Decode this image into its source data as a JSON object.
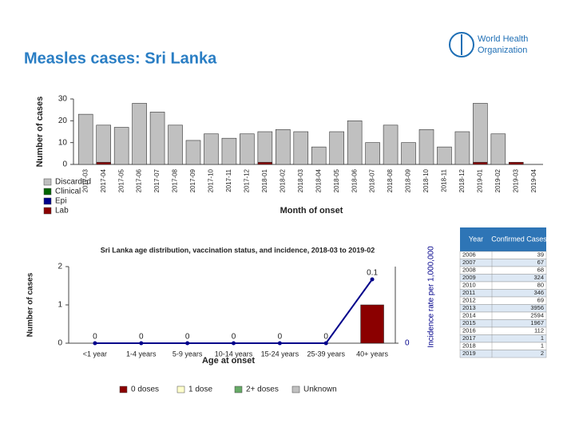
{
  "header": {
    "title": "Measles cases: Sri Lanka",
    "logo": [
      "World Health",
      "Organization"
    ]
  },
  "chart_data": [
    {
      "type": "bar",
      "stacked": true,
      "legend": "bottom-left",
      "y_label": "Number of cases",
      "x_label": "Month of onset",
      "categories": [
        "2017-03",
        "2017-04",
        "2017-05",
        "2017-06",
        "2017-07",
        "2017-08",
        "2017-09",
        "2017-10",
        "2017-11",
        "2017-12",
        "2018-01",
        "2018-02",
        "2018-03",
        "2018-04",
        "2018-05",
        "2018-06",
        "2018-07",
        "2018-08",
        "2018-09",
        "2018-10",
        "2018-11",
        "2018-12",
        "2019-01",
        "2019-02",
        "2019-03",
        "2019-04"
      ],
      "ylim": [
        0,
        30
      ],
      "yticks": [
        0,
        10,
        20,
        30
      ],
      "series": [
        {
          "name": "Lab",
          "color": "#8b0000",
          "values": [
            0,
            1,
            0,
            0,
            0,
            0,
            0,
            0,
            0,
            0,
            1,
            0,
            0,
            0,
            0,
            0,
            0,
            0,
            0,
            0,
            0,
            0,
            1,
            0,
            1,
            0
          ]
        },
        {
          "name": "Epi",
          "color": "#00008b",
          "values": [
            0,
            0,
            0,
            0,
            0,
            0,
            0,
            0,
            0,
            0,
            0,
            0,
            0,
            0,
            0,
            0,
            0,
            0,
            0,
            0,
            0,
            0,
            0,
            0,
            0,
            0
          ]
        },
        {
          "name": "Clinical",
          "color": "#006400",
          "values": [
            0,
            0,
            0,
            0,
            0,
            0,
            0,
            0,
            0,
            0,
            0,
            0,
            0,
            0,
            0,
            0,
            0,
            0,
            0,
            0,
            0,
            0,
            0,
            0,
            0,
            0
          ]
        },
        {
          "name": "Discarded",
          "color": "#c0c0c0",
          "values": [
            23,
            17,
            17,
            28,
            24,
            18,
            11,
            14,
            12,
            14,
            14,
            16,
            15,
            8,
            15,
            20,
            10,
            18,
            10,
            16,
            8,
            15,
            27,
            14,
            0,
            0
          ]
        }
      ]
    },
    {
      "type": "bar",
      "stacked": true,
      "legend": "bottom",
      "title": "Sri Lanka age distribution, vaccination status, and incidence, 2018-03 to 2019-02",
      "y_label": "Number of cases",
      "x_label": "Age at onset",
      "y2_label": "Incidence rate per 1,000,000",
      "categories": [
        "<1 year",
        "1-4 years",
        "5-9 years",
        "10-14 years",
        "15-24 years",
        "25-39 years",
        "40+ years"
      ],
      "ylim": [
        0,
        2
      ],
      "yticks": [
        0,
        1,
        2
      ],
      "y2lim": [
        0,
        0.12
      ],
      "y2ticks": [
        0
      ],
      "series": [
        {
          "name": "0 doses",
          "color": "#8b0000",
          "values": [
            0,
            0,
            0,
            0,
            0,
            0,
            1
          ]
        },
        {
          "name": "1 dose",
          "color": "#ffffcc",
          "values": [
            0,
            0,
            0,
            0,
            0,
            0,
            0
          ]
        },
        {
          "name": "2+ doses",
          "color": "#66aa66",
          "values": [
            0,
            0,
            0,
            0,
            0,
            0,
            0
          ]
        },
        {
          "name": "Unknown",
          "color": "#c0c0c0",
          "values": [
            0,
            0,
            0,
            0,
            0,
            0,
            0
          ]
        }
      ],
      "line": {
        "axis": "y2",
        "color": "#00008b",
        "values": [
          0,
          0,
          0,
          0,
          0,
          0,
          0.1
        ]
      }
    }
  ],
  "table": {
    "header": [
      "Year",
      "Confirmed Cases"
    ],
    "rows": [
      [
        2006,
        39
      ],
      [
        2007,
        67
      ],
      [
        2008,
        68
      ],
      [
        2009,
        324
      ],
      [
        2010,
        80
      ],
      [
        2011,
        346
      ],
      [
        2012,
        69
      ],
      [
        2013,
        3956
      ],
      [
        2014,
        2594
      ],
      [
        2015,
        1967
      ],
      [
        2016,
        112
      ],
      [
        2017,
        1
      ],
      [
        2018,
        1
      ],
      [
        2019,
        2
      ]
    ]
  }
}
